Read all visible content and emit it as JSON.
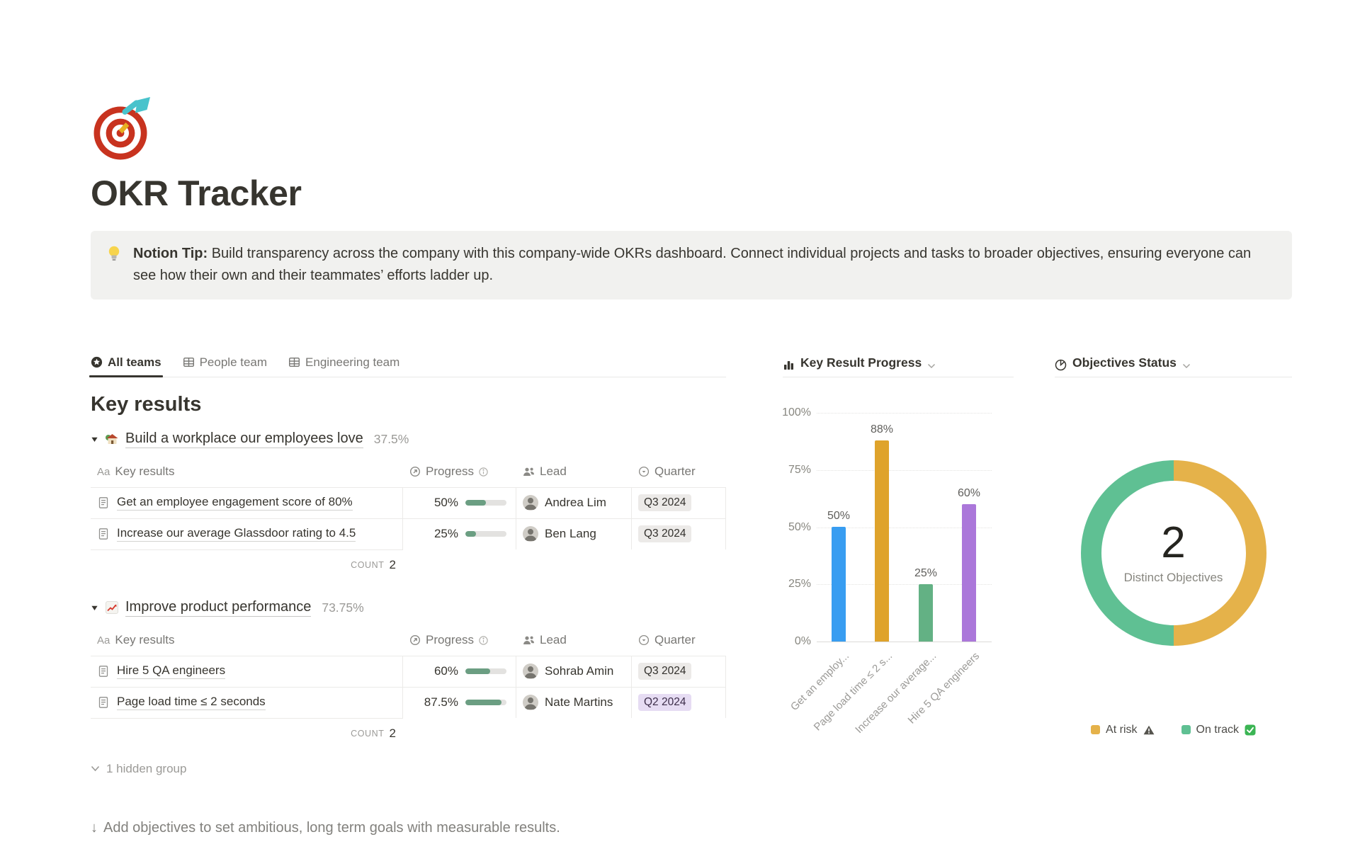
{
  "page": {
    "title": "OKR Tracker",
    "footer_arrow_icon": "↓",
    "footer": "Add objectives to set ambitious, long term goals with measurable results."
  },
  "callout": {
    "label": "Notion Tip:",
    "text": " Build transparency across the company with this company-wide OKRs dashboard. Connect individual projects and tasks to broader objectives, ensuring everyone can see how their own and their teammates’ efforts ladder up."
  },
  "tabs": [
    {
      "label": "All teams",
      "active": true
    },
    {
      "label": "People team",
      "active": false
    },
    {
      "label": "Engineering team",
      "active": false
    }
  ],
  "key_results": {
    "heading": "Key results",
    "columns": {
      "name_glyph": "Aa",
      "name": "Key results",
      "progress": "Progress",
      "lead": "Lead",
      "quarter": "Quarter"
    },
    "count_label": "COUNT",
    "hidden_group": "1 hidden group",
    "groups": [
      {
        "title": "Build a workplace our employees love",
        "percent": "37.5%",
        "count": "2",
        "rows": [
          {
            "name": "Get an employee engagement score of 80%",
            "progress": "50%",
            "progress_value": 50,
            "lead": "Andrea Lim",
            "quarter": "Q3 2024",
            "quarter_color": "gray"
          },
          {
            "name": "Increase our average Glassdoor rating to 4.5",
            "progress": "25%",
            "progress_value": 25,
            "lead": "Ben Lang",
            "quarter": "Q3 2024",
            "quarter_color": "gray"
          }
        ]
      },
      {
        "title": "Improve product performance",
        "percent": "73.75%",
        "count": "2",
        "rows": [
          {
            "name": "Hire 5 QA engineers",
            "progress": "60%",
            "progress_value": 60,
            "lead": "Sohrab Amin",
            "quarter": "Q3 2024",
            "quarter_color": "gray"
          },
          {
            "name": "Page load time ≤ 2 seconds",
            "progress": "87.5%",
            "progress_value": 87.5,
            "lead": "Nate Martins",
            "quarter": "Q2 2024",
            "quarter_color": "purple"
          }
        ]
      }
    ]
  },
  "chart_data": [
    {
      "type": "bar",
      "title": "Key Result Progress",
      "categories": [
        "Get an employ...",
        "Page load time ≤ 2 s...",
        "Increase our average...",
        "Hire 5 QA engineers"
      ],
      "values": [
        50,
        88,
        25,
        60
      ],
      "labels": [
        "50%",
        "88%",
        "25%",
        "60%"
      ],
      "colors": [
        "#389DF1",
        "#DFA32B",
        "#63B184",
        "#AB77DA"
      ],
      "xlabel": "",
      "ylabel": "",
      "ylim": [
        0,
        100
      ],
      "yticks": [
        "100%",
        "75%",
        "50%",
        "25%",
        "0%"
      ],
      "grid": true,
      "legend_position": "none"
    },
    {
      "type": "pie",
      "title": "Objectives Status",
      "center_value": "2",
      "center_label": "Distinct Objectives",
      "slices": [
        {
          "label": "At risk",
          "value": 1,
          "color": "#E5B24A"
        },
        {
          "label": "On track",
          "value": 1,
          "color": "#5FC093"
        }
      ],
      "legend_position": "bottom"
    }
  ]
}
